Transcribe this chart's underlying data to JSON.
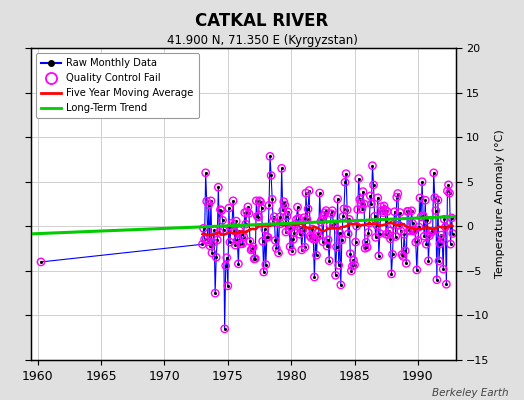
{
  "title": "CATKAL RIVER",
  "subtitle": "41.900 N, 71.350 E (Kyrgyzstan)",
  "ylabel": "Temperature Anomaly (°C)",
  "watermark": "Berkeley Earth",
  "xlim": [
    1959.5,
    1993.0
  ],
  "ylim": [
    -15,
    20
  ],
  "yticks": [
    -15,
    -10,
    -5,
    0,
    5,
    10,
    15,
    20
  ],
  "xticks": [
    1960,
    1965,
    1970,
    1975,
    1980,
    1985,
    1990
  ],
  "bg_color": "#e0e0e0",
  "plot_bg_color": "#ffffff",
  "raw_color": "#0000ff",
  "qc_fail_color": "#ff00ff",
  "moving_avg_color": "#ff0000",
  "trend_color": "#00cc00",
  "grid_color": "#d0d0d0",
  "trend_x": [
    1959.5,
    1993.0
  ],
  "trend_y": [
    -0.85,
    1.1
  ]
}
